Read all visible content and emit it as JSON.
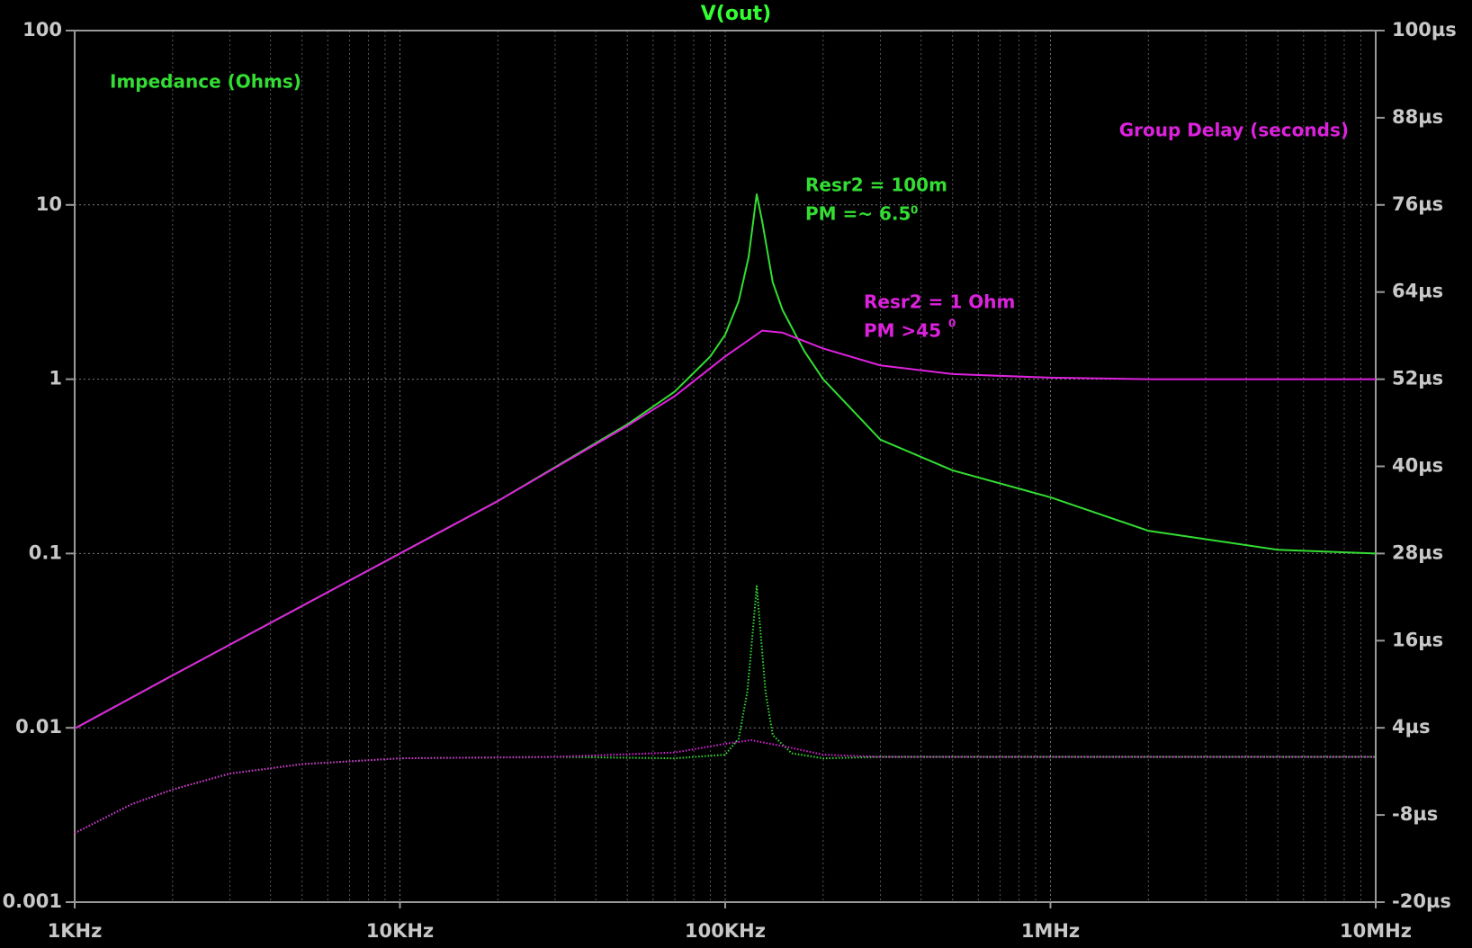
{
  "chart_data": {
    "type": "line",
    "title": "V(out)",
    "title_color": "#33ff33",
    "xscale": "log",
    "yscale": "log",
    "xlim": [
      1000,
      10000000
    ],
    "xticks": [
      {
        "value": 1000,
        "label": "1KHz"
      },
      {
        "value": 10000,
        "label": "10KHz"
      },
      {
        "value": 100000,
        "label": "100KHz"
      },
      {
        "value": 1000000,
        "label": "1MHz"
      },
      {
        "value": 10000000,
        "label": "10MHz"
      }
    ],
    "ylim": [
      0.001,
      100
    ],
    "yticks": [
      0.001,
      0.01,
      0.1,
      1,
      10,
      100
    ],
    "y2lim": [
      -20,
      100
    ],
    "y2ticks": [
      {
        "value": -20,
        "label": "-20µs"
      },
      {
        "value": -8,
        "label": "-8µs"
      },
      {
        "value": 4,
        "label": "4µs"
      },
      {
        "value": 16,
        "label": "16µs"
      },
      {
        "value": 28,
        "label": "28µs"
      },
      {
        "value": 40,
        "label": "40µs"
      },
      {
        "value": 52,
        "label": "52µs"
      },
      {
        "value": 64,
        "label": "64µs"
      },
      {
        "value": 76,
        "label": "76µs"
      },
      {
        "value": 88,
        "label": "88µs"
      },
      {
        "value": 100,
        "label": "100µs"
      }
    ],
    "grid": true,
    "annotations": [
      {
        "text": "Impedance (Ohms)",
        "color": "#33dd33"
      },
      {
        "text": "Group Delay (seconds)",
        "color": "#dd22dd"
      },
      {
        "text": "Resr2 = 100m",
        "color": "#33dd33"
      },
      {
        "text": "PM =~ 6.5",
        "color": "#33dd33"
      },
      {
        "text": "0",
        "color": "#33dd33"
      },
      {
        "text": "Resr2 = 1 Ohm",
        "color": "#dd22dd"
      },
      {
        "text": "PM >45",
        "color": "#dd22dd"
      },
      {
        "text": "0",
        "color": "#dd22dd"
      }
    ],
    "series": [
      {
        "color": "#33dd33",
        "style": "solid",
        "axis": "y",
        "x": [
          1000,
          2000,
          5000,
          10000,
          20000,
          50000,
          70000,
          90000,
          100000,
          110000,
          118000,
          125000,
          130000,
          140000,
          150000,
          175000,
          200000,
          300000,
          500000,
          1000000,
          2000000,
          5000000,
          10000000
        ],
        "values": [
          0.0099,
          0.02,
          0.05,
          0.1,
          0.2,
          0.55,
          0.85,
          1.35,
          1.8,
          2.8,
          5,
          11.5,
          8,
          3.6,
          2.5,
          1.45,
          1.0,
          0.45,
          0.3,
          0.21,
          0.135,
          0.105,
          0.1
        ]
      },
      {
        "color": "#dd22dd",
        "style": "solid",
        "axis": "y",
        "x": [
          1000,
          2000,
          5000,
          10000,
          20000,
          50000,
          70000,
          100000,
          130000,
          150000,
          200000,
          300000,
          500000,
          1000000,
          2000000,
          5000000,
          10000000
        ],
        "values": [
          0.0099,
          0.02,
          0.05,
          0.1,
          0.2,
          0.54,
          0.8,
          1.35,
          1.9,
          1.85,
          1.5,
          1.2,
          1.07,
          1.02,
          1.0,
          1.0,
          1.0
        ]
      },
      {
        "color": "#33dd33",
        "style": "dotted",
        "axis": "y2",
        "x": [
          1000,
          1500,
          2000,
          3000,
          5000,
          10000,
          30000,
          70000,
          100000,
          110000,
          117000,
          122000,
          125000,
          128000,
          133000,
          140000,
          160000,
          200000,
          300000,
          1000000,
          10000000
        ],
        "values": [
          -10.5,
          -6.5,
          -4.5,
          -2.3,
          -1,
          -0.2,
          0,
          -0.2,
          0.3,
          2.5,
          9,
          18,
          23.5,
          18,
          9,
          3,
          0.5,
          -0.2,
          0,
          0,
          0
        ]
      },
      {
        "color": "#dd22dd",
        "style": "dotted",
        "axis": "y2",
        "x": [
          1000,
          1500,
          2000,
          3000,
          5000,
          10000,
          30000,
          70000,
          100000,
          120000,
          150000,
          200000,
          300000,
          1000000,
          10000000
        ],
        "values": [
          -10.5,
          -6.5,
          -4.5,
          -2.3,
          -1,
          -0.2,
          0,
          0.6,
          1.8,
          2.3,
          1.5,
          0.3,
          0,
          0,
          0
        ]
      }
    ]
  }
}
